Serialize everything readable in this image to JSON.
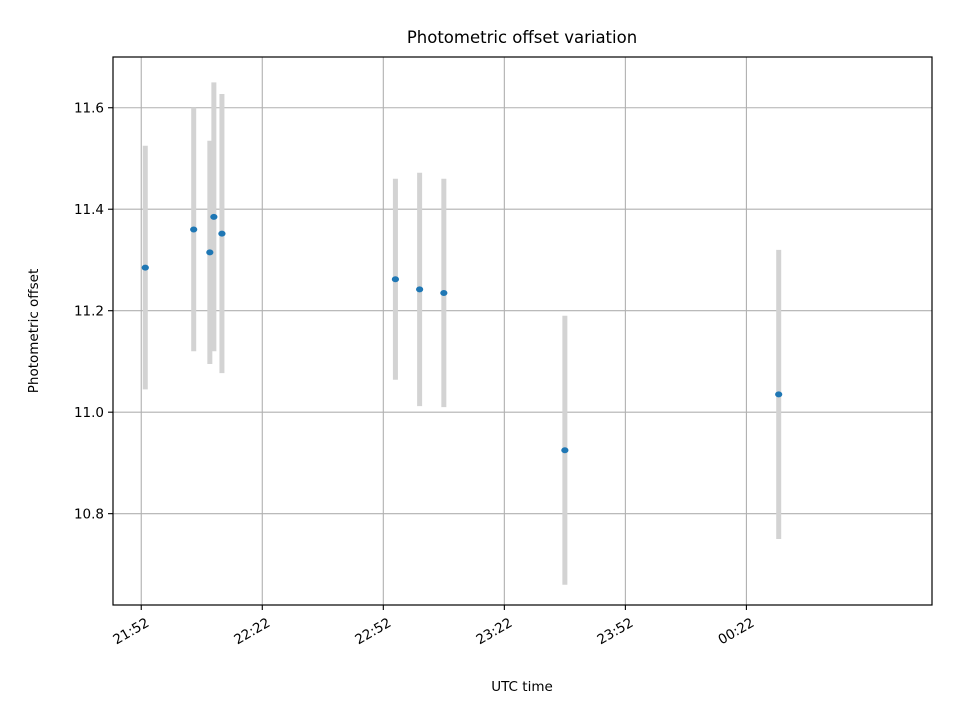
{
  "chart_data": {
    "type": "scatter",
    "title": "Photometric offset variation",
    "xlabel": "UTC time",
    "ylabel": "Photometric offset",
    "x_unit": "time (HH:MM)",
    "xlim": [
      "21:45",
      "01:08"
    ],
    "ylim": [
      10.62,
      11.7
    ],
    "xticks": [
      "21:52",
      "22:22",
      "22:52",
      "23:22",
      "23:52",
      "00:22"
    ],
    "yticks": [
      10.8,
      11.0,
      11.2,
      11.4,
      11.6
    ],
    "grid": true,
    "marker_color": "#1f77b4",
    "errorbar_color": "#d3d3d3",
    "points": [
      {
        "x": "21:53",
        "y": 11.285,
        "err": 0.24
      },
      {
        "x": "22:05",
        "y": 11.36,
        "err": 0.24
      },
      {
        "x": "22:09",
        "y": 11.315,
        "err": 0.22
      },
      {
        "x": "22:10",
        "y": 11.385,
        "err": 0.265
      },
      {
        "x": "22:12",
        "y": 11.352,
        "err": 0.275
      },
      {
        "x": "22:55",
        "y": 11.262,
        "err": 0.198
      },
      {
        "x": "23:01",
        "y": 11.242,
        "err": 0.23
      },
      {
        "x": "23:07",
        "y": 11.235,
        "err": 0.225
      },
      {
        "x": "23:37",
        "y": 10.925,
        "err": 0.265
      },
      {
        "x": "00:30",
        "y": 11.035,
        "err": 0.285
      }
    ]
  }
}
